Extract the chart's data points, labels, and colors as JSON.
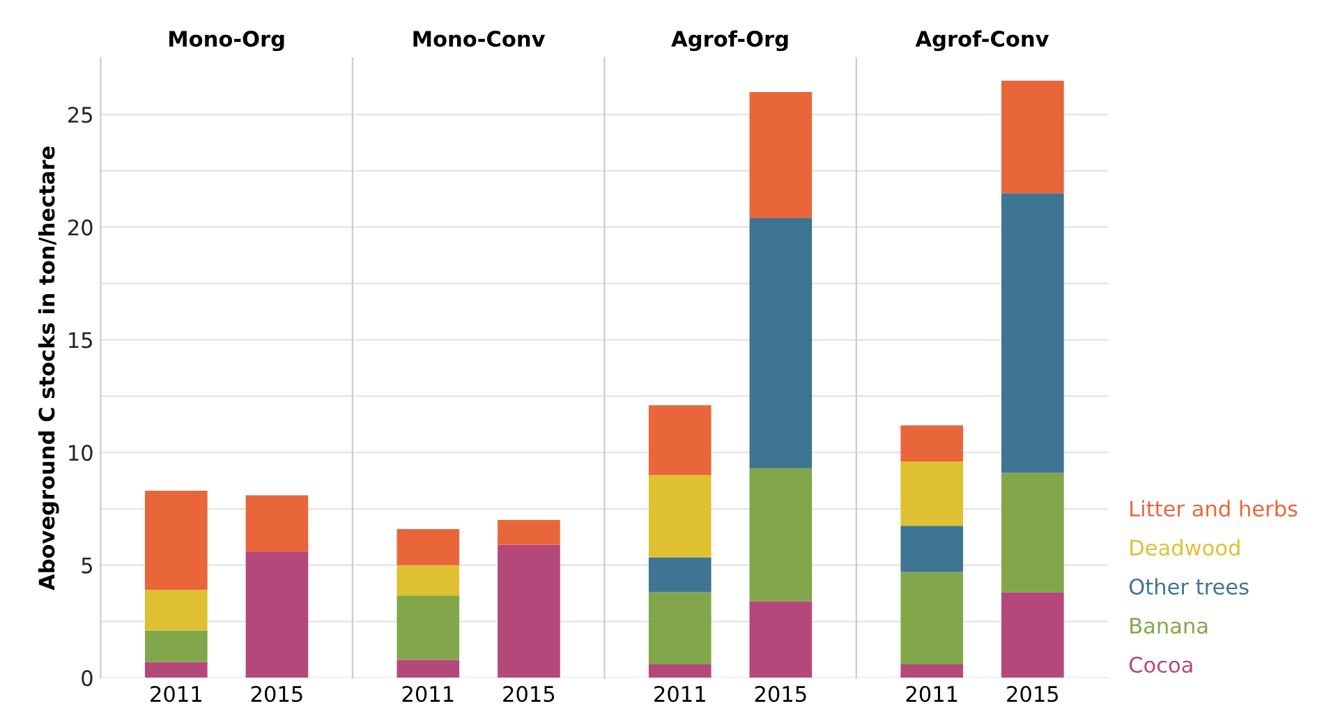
{
  "chart_data": [
    {
      "type": "bar",
      "stacked": true,
      "title": "Mono-Org",
      "ylabel": "Aboveground C stocks in ton/hectare",
      "categories": [
        "2011",
        "2015"
      ],
      "ylim": [
        0,
        27.5
      ],
      "yticks": [
        0,
        {
          "value": 2.5,
          "label": null
        },
        5,
        {
          "value": 7.5,
          "label": null
        },
        10,
        {
          "value": 12.5,
          "label": null
        },
        15,
        {
          "value": 17.5,
          "label": null
        },
        20,
        {
          "value": 22.5,
          "label": null
        },
        25
      ],
      "grid": "y",
      "legend": false,
      "series": [
        {
          "color": "#b5487a",
          "values": [
            0.7,
            5.6
          ]
        },
        {
          "color": "#82a64a",
          "values": [
            1.4,
            null
          ]
        },
        {
          "color": "#dfc030",
          "values": [
            1.8,
            null
          ]
        },
        {
          "color": "#e8663a",
          "values": [
            4.4,
            2.5
          ]
        }
      ]
    },
    {
      "type": "bar",
      "stacked": true,
      "title": "Mono-Conv",
      "categories": [
        "2011",
        "2015"
      ],
      "ylim": [
        0,
        27.5
      ],
      "yticks": [
        0,
        {
          "value": 2.5,
          "label": null
        },
        5,
        {
          "value": 7.5,
          "label": null
        },
        10,
        {
          "value": 12.5,
          "label": null
        },
        15,
        {
          "value": 17.5,
          "label": null
        },
        20,
        {
          "value": 22.5,
          "label": null
        },
        25
      ],
      "grid": "y",
      "legend": false,
      "tick_labels": "x",
      "series": [
        {
          "color": "#b5487a",
          "values": [
            0.8,
            5.9
          ]
        },
        {
          "color": "#82a64a",
          "values": [
            2.85,
            null
          ]
        },
        {
          "color": "#dfc030",
          "values": [
            1.35,
            null
          ]
        },
        {
          "color": "#e8663a",
          "values": [
            1.6,
            1.1
          ]
        }
      ]
    },
    {
      "type": "bar",
      "stacked": true,
      "title": "Agrof-Org",
      "categories": [
        "2011",
        "2015"
      ],
      "ylim": [
        0,
        27.5
      ],
      "yticks": [
        0,
        {
          "value": 2.5,
          "label": null
        },
        5,
        {
          "value": 7.5,
          "label": null
        },
        10,
        {
          "value": 12.5,
          "label": null
        },
        15,
        {
          "value": 17.5,
          "label": null
        },
        20,
        {
          "value": 22.5,
          "label": null
        },
        25
      ],
      "grid": "y",
      "legend": false,
      "tick_labels": "x",
      "series": [
        {
          "color": "#b5487a",
          "values": [
            0.6,
            3.4
          ]
        },
        {
          "color": "#82a64a",
          "values": [
            3.2,
            5.9
          ]
        },
        {
          "color": "#3d7592",
          "values": [
            1.55,
            11.1
          ]
        },
        {
          "color": "#dfc030",
          "values": [
            3.65,
            null
          ]
        },
        {
          "color": "#e8663a",
          "values": [
            3.1,
            5.6
          ]
        }
      ]
    },
    {
      "type": "bar",
      "stacked": true,
      "title": "Agrof-Conv",
      "categories": [
        "2011",
        "2015"
      ],
      "ylim": [
        0,
        27.5
      ],
      "yticks": [
        0,
        {
          "value": 2.5,
          "label": null
        },
        5,
        {
          "value": 7.5,
          "label": null
        },
        10,
        {
          "value": 12.5,
          "label": null
        },
        15,
        {
          "value": 17.5,
          "label": null
        },
        20,
        {
          "value": 22.5,
          "label": null
        },
        25
      ],
      "grid": "y",
      "legend": "right",
      "tick_labels": "x",
      "series": [
        {
          "name": "Cocoa",
          "color": "#b5487a",
          "values": [
            0.6,
            3.8
          ]
        },
        {
          "name": "Banana",
          "color": "#82a64a",
          "values": [
            4.1,
            5.3
          ]
        },
        {
          "name": "Other trees",
          "color": "#3d7592",
          "values": [
            2.05,
            12.4
          ]
        },
        {
          "name": "Deadwood",
          "color": "#dfc030",
          "values": [
            2.85,
            null
          ]
        },
        {
          "name": "Litter and herbs",
          "color": "#e8663a",
          "values": [
            1.6,
            5.0
          ]
        }
      ]
    }
  ]
}
